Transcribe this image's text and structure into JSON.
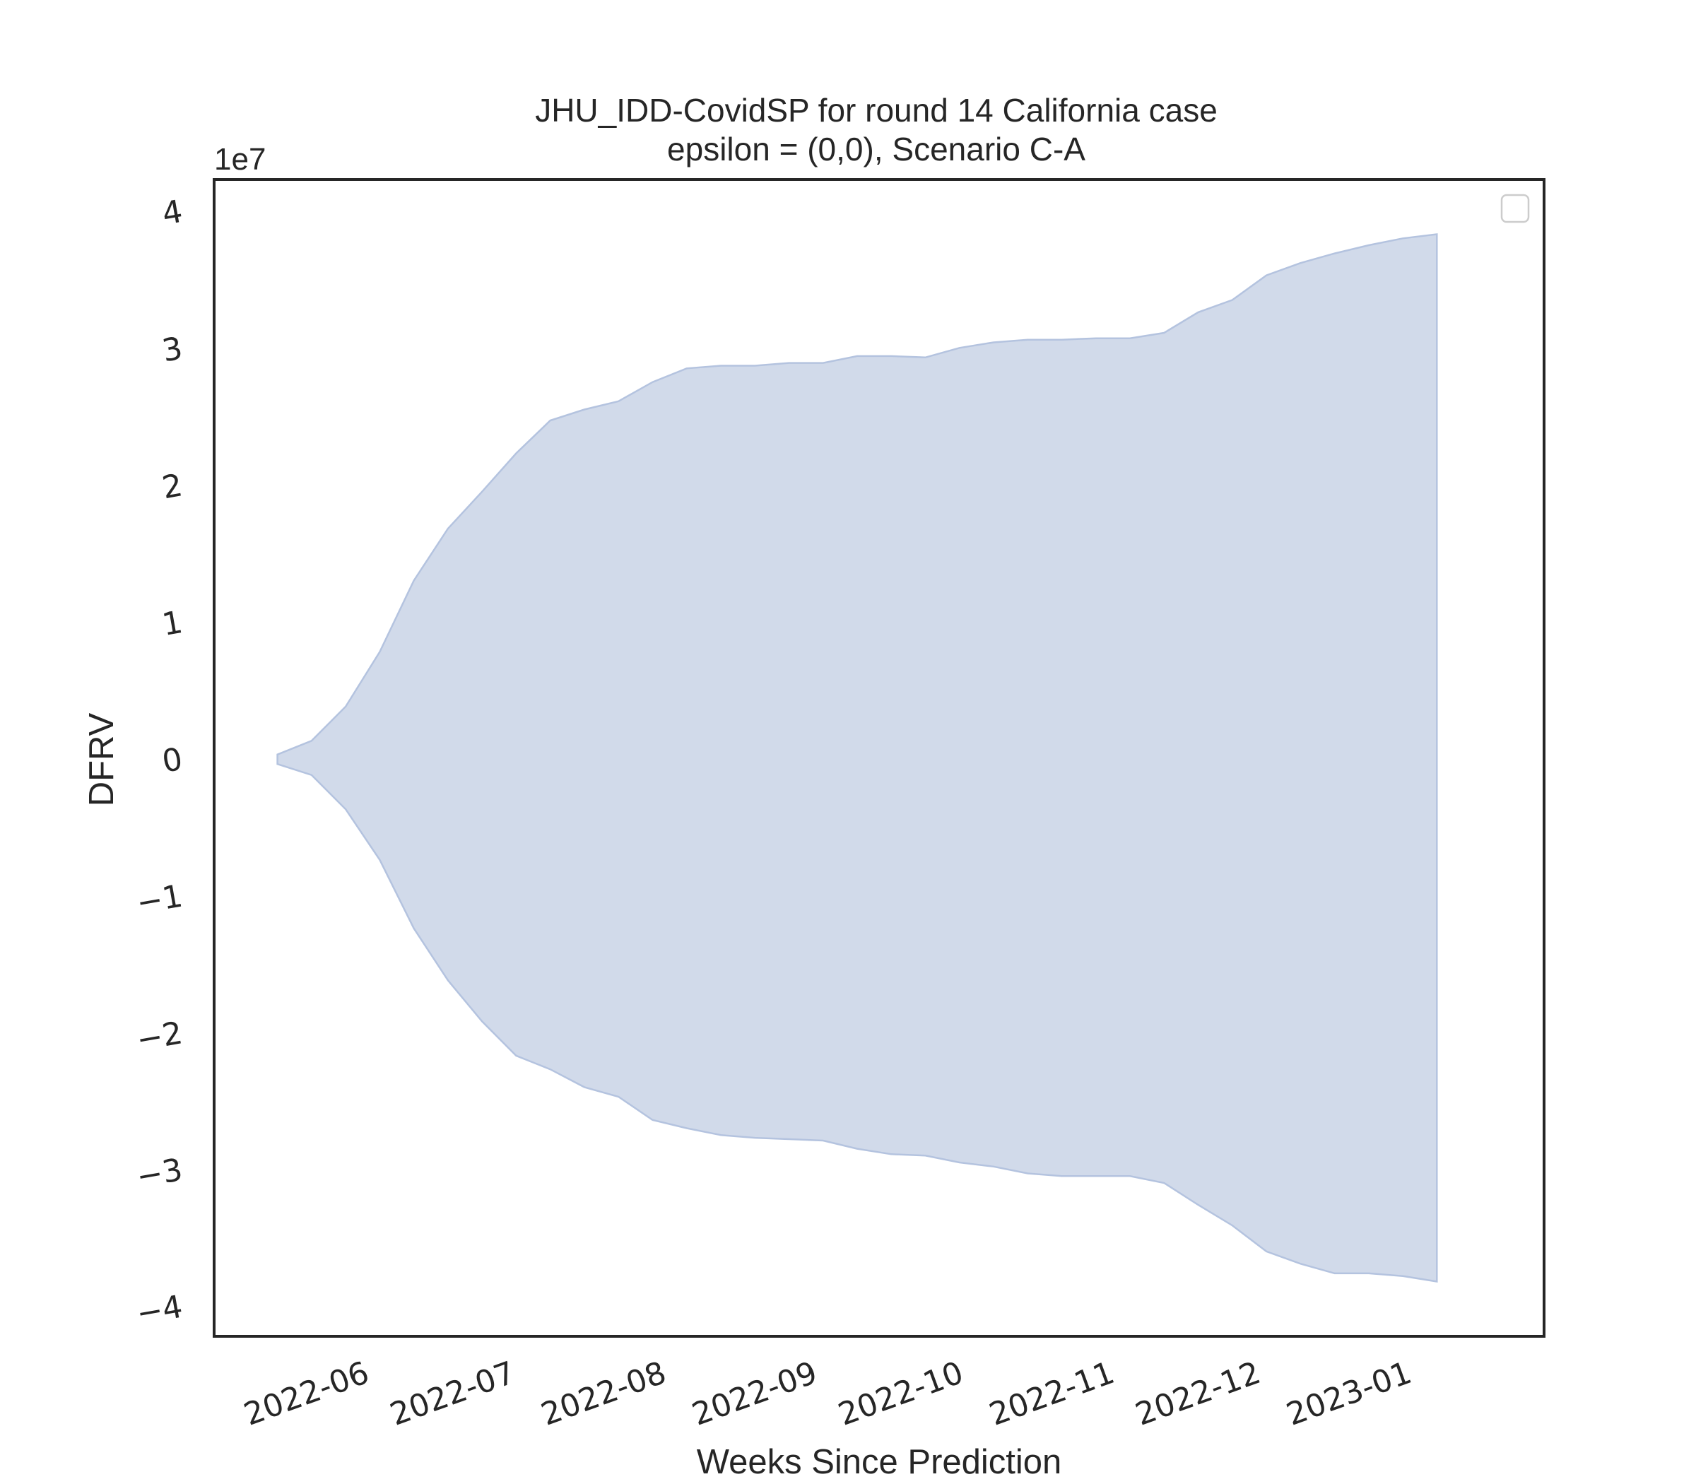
{
  "colors": {
    "band_fill": "#d1daea",
    "band_stroke": "#b4c3df",
    "frame": "#262626",
    "text": "#262626"
  },
  "chart_data": {
    "type": "area",
    "title": "JHU_IDD-CovidSP for round 14 California case",
    "subtitle": "epsilon = (0,0), Scenario C-A",
    "xlabel": "Weeks Since Prediction",
    "ylabel": "DFRV",
    "y_offset_label": "1e7",
    "y_scale": 10000000,
    "ylim": [
      -4.2,
      4.25
    ],
    "xlim": [
      "2022-05-01",
      "2023-01-29"
    ],
    "x_ticks": [
      "2022-06-01",
      "2022-07-01",
      "2022-08-01",
      "2022-09-01",
      "2022-10-01",
      "2022-11-01",
      "2022-12-01",
      "2023-01-01"
    ],
    "x_tick_labels": [
      "2022-06",
      "2022-07",
      "2022-08",
      "2022-09",
      "2022-10",
      "2022-11",
      "2022-12",
      "2023-01"
    ],
    "y_ticks": [
      4,
      3,
      2,
      1,
      0,
      -1,
      -2,
      -3,
      -4
    ],
    "y_tick_labels": [
      "4",
      "3",
      "2",
      "1",
      "0",
      "−1",
      "−2",
      "−3",
      "−4"
    ],
    "legend": {
      "position": "top-right",
      "entries": []
    },
    "grid": false,
    "series": [
      {
        "x": [
          "2022-05-14",
          "2022-05-21",
          "2022-05-28",
          "2022-06-04",
          "2022-06-11",
          "2022-06-18",
          "2022-06-25",
          "2022-07-02",
          "2022-07-09",
          "2022-07-16",
          "2022-07-23",
          "2022-07-30",
          "2022-08-06",
          "2022-08-13",
          "2022-08-20",
          "2022-08-27",
          "2022-09-03",
          "2022-09-10",
          "2022-09-17",
          "2022-09-24",
          "2022-10-01",
          "2022-10-08",
          "2022-10-15",
          "2022-10-22",
          "2022-10-29",
          "2022-11-05",
          "2022-11-12",
          "2022-11-19",
          "2022-11-26",
          "2022-12-03",
          "2022-12-10",
          "2022-12-17",
          "2022-12-24",
          "2022-12-31",
          "2023-01-07"
        ],
        "upper": [
          0.05,
          0.15,
          0.4,
          0.8,
          1.32,
          1.7,
          1.97,
          2.25,
          2.49,
          2.57,
          2.63,
          2.77,
          2.87,
          2.89,
          2.89,
          2.91,
          2.91,
          2.96,
          2.96,
          2.95,
          3.02,
          3.06,
          3.08,
          3.08,
          3.09,
          3.09,
          3.13,
          3.28,
          3.37,
          3.55,
          3.64,
          3.71,
          3.77,
          3.82,
          3.85
        ],
        "lower": [
          -0.02,
          -0.1,
          -0.35,
          -0.72,
          -1.22,
          -1.6,
          -1.9,
          -2.15,
          -2.25,
          -2.38,
          -2.45,
          -2.62,
          -2.68,
          -2.73,
          -2.75,
          -2.76,
          -2.77,
          -2.83,
          -2.87,
          -2.88,
          -2.93,
          -2.96,
          -3.01,
          -3.03,
          -3.03,
          -3.03,
          -3.08,
          -3.24,
          -3.39,
          -3.58,
          -3.67,
          -3.74,
          -3.74,
          -3.76,
          -3.8
        ]
      }
    ]
  }
}
